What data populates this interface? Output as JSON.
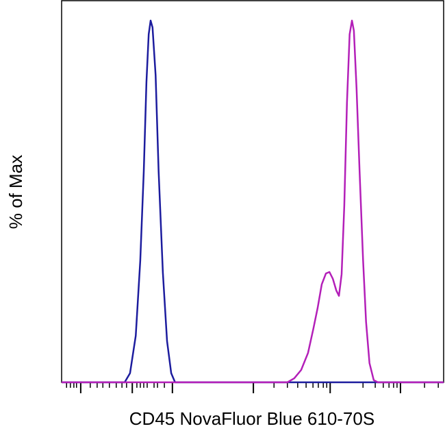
{
  "chart_data": {
    "type": "line",
    "ylabel": "% of Max",
    "xlabel": "CD45 NovaFluor Blue 610-70S",
    "xlim": [
      0,
      100
    ],
    "ylim": [
      0,
      105.5
    ],
    "xticks": [
      5.0,
      18.5,
      29.0,
      50.2,
      70.3,
      88.7
    ],
    "xminorticks": [
      1.3,
      2.3,
      3.2,
      3.9,
      7.5,
      9.3,
      10.8,
      12.5,
      14.3,
      15.8,
      17.0,
      19.7,
      20.6,
      21.5,
      22.4,
      24.2,
      25.1,
      26.9,
      55.6,
      59.1,
      61.8,
      64.0,
      65.8,
      67.2,
      68.5,
      69.4,
      78.9,
      82.1,
      84.2,
      85.7,
      86.9,
      87.8,
      95.0,
      98.6
    ],
    "series": [
      {
        "color": "#1c1c9e",
        "x": [
          0,
          16.5,
          17.9,
          19.4,
          20.6,
          21.5,
          22.2,
          22.8,
          23.3,
          23.8,
          24.6,
          25.4,
          26.5,
          27.6,
          28.7,
          29.7,
          100
        ],
        "values": [
          0,
          0,
          2.5,
          12.9,
          33.7,
          58.3,
          83.0,
          96.2,
          100,
          98.1,
          84.9,
          58.3,
          30.3,
          11.4,
          2.5,
          0,
          0
        ]
      },
      {
        "color": "#b31fb8",
        "x": [
          0,
          59.1,
          60.9,
          62.7,
          64.5,
          65.9,
          67.0,
          68.1,
          69.2,
          70.1,
          71.0,
          71.9,
          72.6,
          73.3,
          74.0,
          74.7,
          75.4,
          76.0,
          76.5,
          77.2,
          78.0,
          78.9,
          79.7,
          80.6,
          81.7,
          82.8,
          100
        ],
        "values": [
          0,
          0,
          1.1,
          3.4,
          8.1,
          14.8,
          20.5,
          27.1,
          30.1,
          30.5,
          28.6,
          25.4,
          23.9,
          29.9,
          48.9,
          77.3,
          96.2,
          100,
          97.2,
          81.3,
          58.5,
          33.9,
          16.7,
          5.3,
          0.6,
          0,
          0
        ]
      }
    ]
  }
}
